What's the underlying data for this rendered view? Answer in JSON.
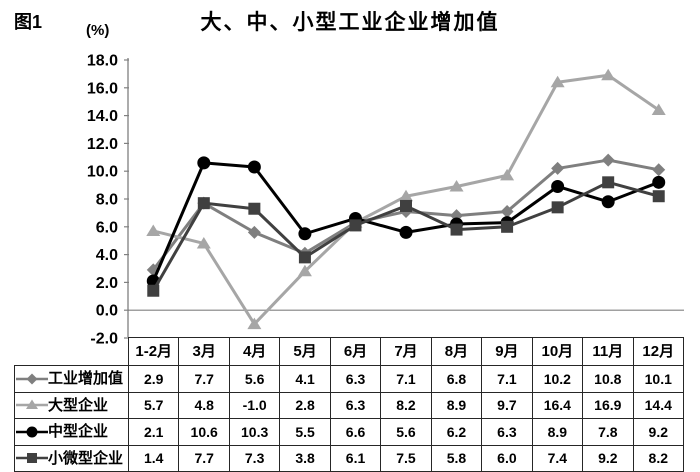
{
  "figure_label": "图1",
  "unit_label": "(%)",
  "title": "大、中、小型工业企业增加值",
  "chart_data": {
    "type": "line",
    "title": "大、中、小型工业企业增加值",
    "ylabel": "(%)",
    "categories": [
      "1-2月",
      "3月",
      "4月",
      "5月",
      "6月",
      "7月",
      "8月",
      "9月",
      "10月",
      "11月",
      "12月"
    ],
    "series": [
      {
        "name": "工业增加值",
        "marker": "diamond",
        "color": "#7f7f7f",
        "values": [
          2.9,
          7.7,
          5.6,
          4.1,
          6.3,
          7.1,
          6.8,
          7.1,
          10.2,
          10.8,
          10.1
        ]
      },
      {
        "name": "大型企业",
        "marker": "triangle",
        "color": "#a6a6a6",
        "values": [
          5.7,
          4.8,
          -1.0,
          2.8,
          6.3,
          8.2,
          8.9,
          9.7,
          16.4,
          16.9,
          14.4
        ]
      },
      {
        "name": "中型企业",
        "marker": "circle",
        "color": "#000000",
        "values": [
          2.1,
          10.6,
          10.3,
          5.5,
          6.6,
          5.6,
          6.2,
          6.3,
          8.9,
          7.8,
          9.2
        ]
      },
      {
        "name": "小微型企业",
        "marker": "square",
        "color": "#404040",
        "values": [
          1.4,
          7.7,
          7.3,
          3.8,
          6.1,
          7.5,
          5.8,
          6.0,
          7.4,
          9.2,
          8.2
        ]
      }
    ],
    "ylim": [
      -2.0,
      18.0
    ],
    "ytick_step": 2.0,
    "ytick_labels": [
      "18.0",
      "16.0",
      "14.0",
      "12.0",
      "10.0",
      "8.0",
      "6.0",
      "4.0",
      "2.0",
      "0.0",
      "-2.0"
    ],
    "grid": "horizontal-dashed",
    "zero_line": "solid",
    "legend_position": "table-left",
    "data_table_shown": true
  },
  "style": {
    "grid_color": "#8c8c8c",
    "axis_color": "#808080",
    "table_border_color": "#262626"
  }
}
